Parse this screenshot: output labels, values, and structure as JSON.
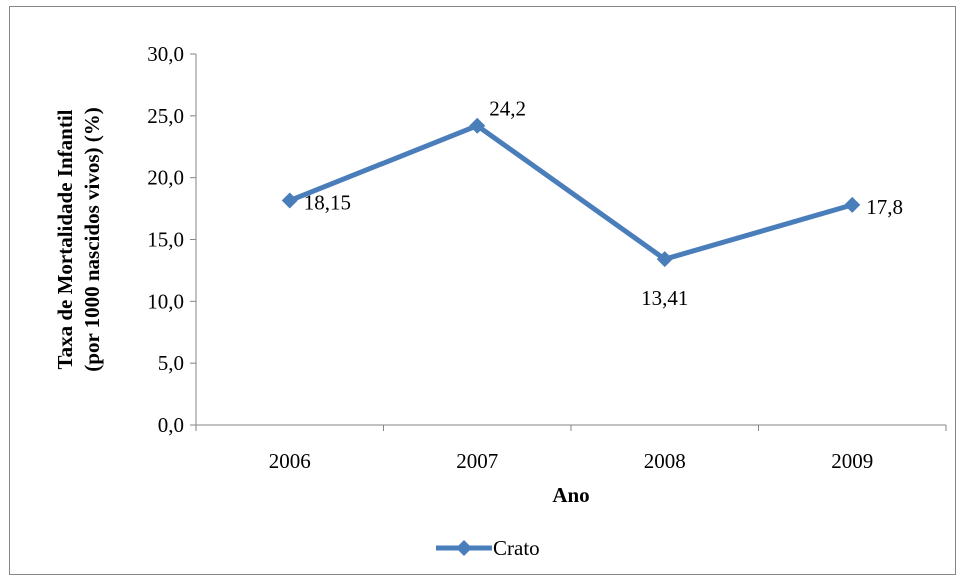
{
  "chart_data": {
    "type": "line",
    "categories": [
      "2006",
      "2007",
      "2008",
      "2009"
    ],
    "series": [
      {
        "name": "Crato",
        "values": [
          18.15,
          24.2,
          13.41,
          17.8
        ],
        "labels": [
          "18,15",
          "24,2",
          "13,41",
          "17,8"
        ],
        "color": "#4a7ebb"
      }
    ],
    "title": "",
    "xlabel": "Ano",
    "ylabel_lines": [
      "Taxa de Mortalidade Infantil",
      "(por 1000 nascidos vivos) (%)"
    ],
    "ylim": [
      0,
      30
    ],
    "yticks": [
      "0,0",
      "5,0",
      "10,0",
      "15,0",
      "20,0",
      "25,0",
      "30,0"
    ],
    "grid": false,
    "legend_position": "bottom"
  }
}
